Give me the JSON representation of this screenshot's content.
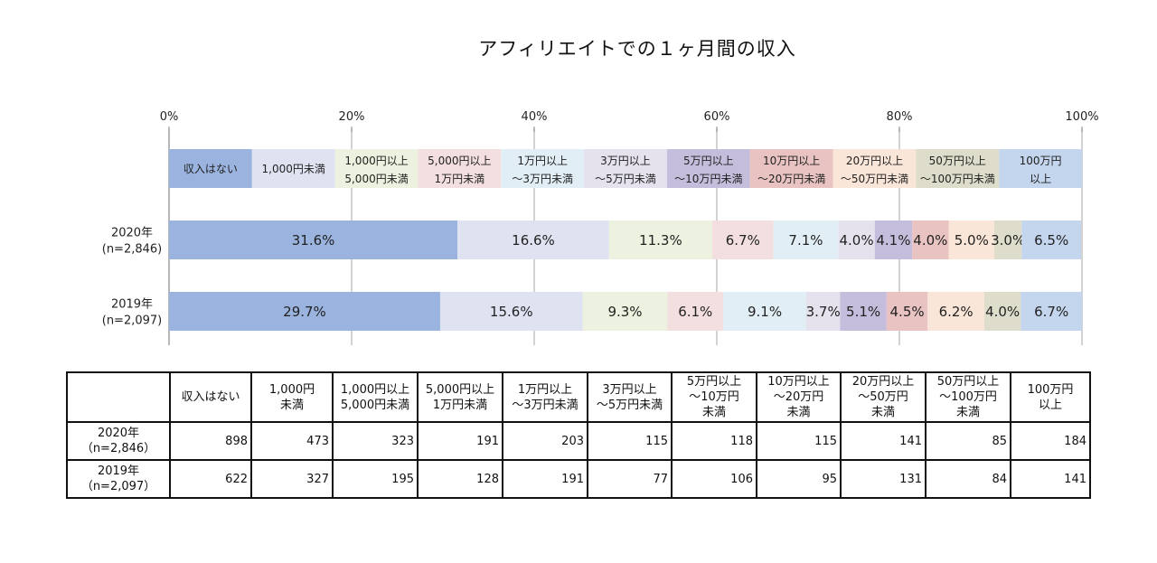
{
  "title": "アフィリエイトでの１ヶ月間の収入",
  "chart_data": {
    "type": "bar",
    "stacked": true,
    "orientation": "horizontal",
    "percent_stacked": true,
    "xlim": [
      0,
      100
    ],
    "x_ticks": [
      "0%",
      "20%",
      "40%",
      "60%",
      "80%",
      "100%"
    ],
    "grid": true,
    "legend_position": "top",
    "categories": [
      {
        "line1": "2020年",
        "line2": "(n=2,846)"
      },
      {
        "line1": "2019年",
        "line2": "(n=2,097)"
      }
    ],
    "series": [
      {
        "name": "収入はない",
        "legend": [
          "収入はない"
        ],
        "color": "#9ab4df",
        "values": [
          31.6,
          29.7
        ],
        "labels": [
          "31.6%",
          "29.7%"
        ]
      },
      {
        "name": "1,000円未満",
        "legend": [
          "1,000円未満"
        ],
        "color": "#dfe3f1",
        "values": [
          16.6,
          15.6
        ],
        "labels": [
          "16.6%",
          "15.6%"
        ]
      },
      {
        "name": "1,000円以上5,000円未満",
        "legend": [
          "1,000円以上",
          "5,000円未満"
        ],
        "color": "#ecf1e0",
        "values": [
          11.3,
          9.3
        ],
        "labels": [
          "11.3%",
          "9.3%"
        ]
      },
      {
        "name": "5,000円以上1万円未満",
        "legend": [
          "5,000円以上",
          "1万円未満"
        ],
        "color": "#f3dfdf",
        "values": [
          6.7,
          6.1
        ],
        "labels": [
          "6.7%",
          "6.1%"
        ]
      },
      {
        "name": "1万円以上〜3万円未満",
        "legend": [
          "1万円以上",
          "〜3万円未満"
        ],
        "color": "#e1eef5",
        "values": [
          7.1,
          9.1
        ],
        "labels": [
          "7.1%",
          "9.1%"
        ]
      },
      {
        "name": "3万円以上〜5万円未満",
        "legend": [
          "3万円以上",
          "〜5万円未満"
        ],
        "color": "#e5e2ee",
        "values": [
          4.0,
          3.7
        ],
        "labels": [
          "4.0%",
          "3.7%"
        ]
      },
      {
        "name": "5万円以上〜10万円未満",
        "legend": [
          "5万円以上",
          "〜10万円未満"
        ],
        "color": "#c5bddc",
        "values": [
          4.1,
          5.1
        ],
        "labels": [
          "4.1%",
          "5.1%"
        ]
      },
      {
        "name": "10万円以上〜20万円未満",
        "legend": [
          "10万円以上",
          "〜20万円未満"
        ],
        "color": "#e8c3c1",
        "values": [
          4.0,
          4.5
        ],
        "labels": [
          "4.0%",
          "4.5%"
        ]
      },
      {
        "name": "20万円以上〜50万円未満",
        "legend": [
          "20万円以上",
          "〜50万円未満"
        ],
        "color": "#fae6d8",
        "values": [
          5.0,
          6.2
        ],
        "labels": [
          "5.0%",
          "6.2%"
        ]
      },
      {
        "name": "50万円以上〜100万円未満",
        "legend": [
          "50万円以上",
          "〜100万円未満"
        ],
        "color": "#dedcca",
        "values": [
          3.0,
          4.0
        ],
        "labels": [
          "3.0%",
          "4.0%"
        ]
      },
      {
        "name": "100万円以上",
        "legend": [
          "100万円",
          "以上"
        ],
        "color": "#c4d5ee",
        "values": [
          6.5,
          6.7
        ],
        "labels": [
          "6.5%",
          "6.7%"
        ]
      }
    ]
  },
  "table": {
    "corner": "",
    "headers": [
      "収入はない",
      "1,000円\n未満",
      "1,000円以上\n5,000円未満",
      "5,000円以上\n1万円未満",
      "1万円以上\n〜3万円未満",
      "3万円以上\n〜5万円未満",
      "5万円以上\n〜10万円\n未満",
      "10万円以上\n〜20万円\n未満",
      "20万円以上\n〜50万円\n未満",
      "50万円以上\n〜100万円\n未満",
      "100万円\n以上"
    ],
    "rows": [
      {
        "label": "2020年\n（n=2,846）",
        "values": [
          "898",
          "473",
          "323",
          "191",
          "203",
          "115",
          "118",
          "115",
          "141",
          "85",
          "184"
        ]
      },
      {
        "label": "2019年\n（n=2,097）",
        "values": [
          "622",
          "327",
          "195",
          "128",
          "191",
          "77",
          "106",
          "95",
          "131",
          "84",
          "141"
        ]
      }
    ]
  }
}
